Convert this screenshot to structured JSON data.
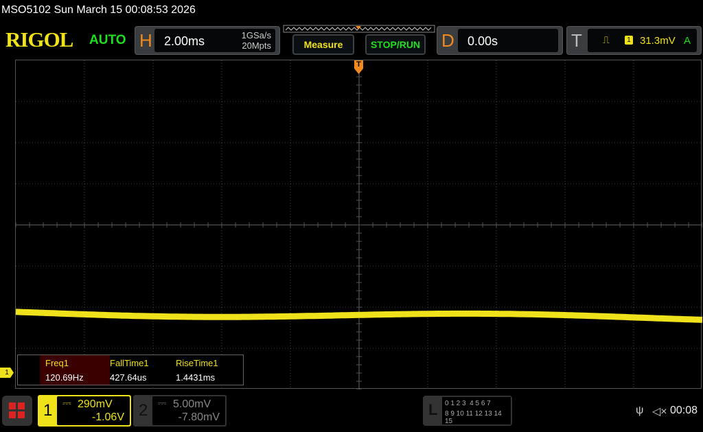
{
  "title": "MSO5102  Sun March 15 00:08:53 2026",
  "brand": "RIGOL",
  "trigger_status": "AUTO",
  "horizontal": {
    "letter": "H",
    "timebase": "2.00ms",
    "sample_rate": "1GSa/s",
    "memory_depth": "20Mpts"
  },
  "buttons": {
    "measure": "Measure",
    "stop_run": "STOP/RUN"
  },
  "delay": {
    "letter": "D",
    "value": "0.00s"
  },
  "trigger": {
    "letter": "T",
    "source": "1",
    "level": "31.3mV",
    "mode": "A",
    "marker": "T"
  },
  "measurements": [
    {
      "label": "Freq1",
      "value": "120.69Hz"
    },
    {
      "label": "FallTime1",
      "value": "427.64us"
    },
    {
      "label": "RiseTime1",
      "value": "1.4431ms"
    }
  ],
  "channels": [
    {
      "number": "1",
      "scale": "290mV",
      "offset": "-1.06V",
      "color": "#f0e21a"
    },
    {
      "number": "2",
      "scale": "5.00mV",
      "offset": "-7.80mV",
      "color": "#888888"
    }
  ],
  "logic": {
    "letter": "L",
    "row1": "0 1 2 3  4 5 6 7",
    "row2": "8 9 10 11 12 13 14 15"
  },
  "status": {
    "clock": "00:08",
    "usb": "usb-icon",
    "sound": "mute-icon"
  },
  "ch1_marker": "1",
  "colors": {
    "ch1": "#f0e21a",
    "accent": "#f08a1e",
    "green": "#1ee01e"
  }
}
